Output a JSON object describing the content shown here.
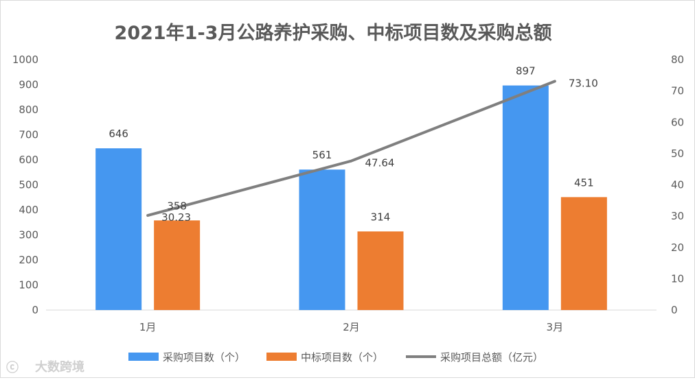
{
  "chart_data": {
    "type": "bar",
    "title": "2021年1-3月公路养护采购、中标项目数及采购总额",
    "categories": [
      "1月",
      "2月",
      "3月"
    ],
    "series": [
      {
        "name": "采购项目数（个）",
        "kind": "bar",
        "axis": "left",
        "color": "#4597f0",
        "values": [
          646,
          561,
          897
        ]
      },
      {
        "name": "中标项目数（个）",
        "kind": "bar",
        "axis": "left",
        "color": "#ed7d31",
        "values": [
          358,
          314,
          451
        ]
      },
      {
        "name": "采购项目总额（亿元）",
        "kind": "line",
        "axis": "right",
        "color": "#7f7f7f",
        "values": [
          30.23,
          47.64,
          73.1
        ]
      }
    ],
    "data_labels": {
      "s0": [
        "646",
        "561",
        "897"
      ],
      "s1": [
        "358",
        "314",
        "451"
      ],
      "s2": [
        "30.23",
        "47.64",
        "73.10"
      ]
    },
    "y_left": {
      "min": 0,
      "max": 1000,
      "step": 100,
      "ticks": [
        "0",
        "100",
        "200",
        "300",
        "400",
        "500",
        "600",
        "700",
        "800",
        "900",
        "1000"
      ]
    },
    "y_right": {
      "min": 0,
      "max": 80,
      "step": 10,
      "ticks": [
        "0",
        "10",
        "20",
        "30",
        "40",
        "50",
        "60",
        "70",
        "80"
      ]
    },
    "legend_position": "bottom",
    "grid": false
  },
  "watermark": {
    "text": "大数跨境",
    "logo_text": "ⓒ"
  }
}
